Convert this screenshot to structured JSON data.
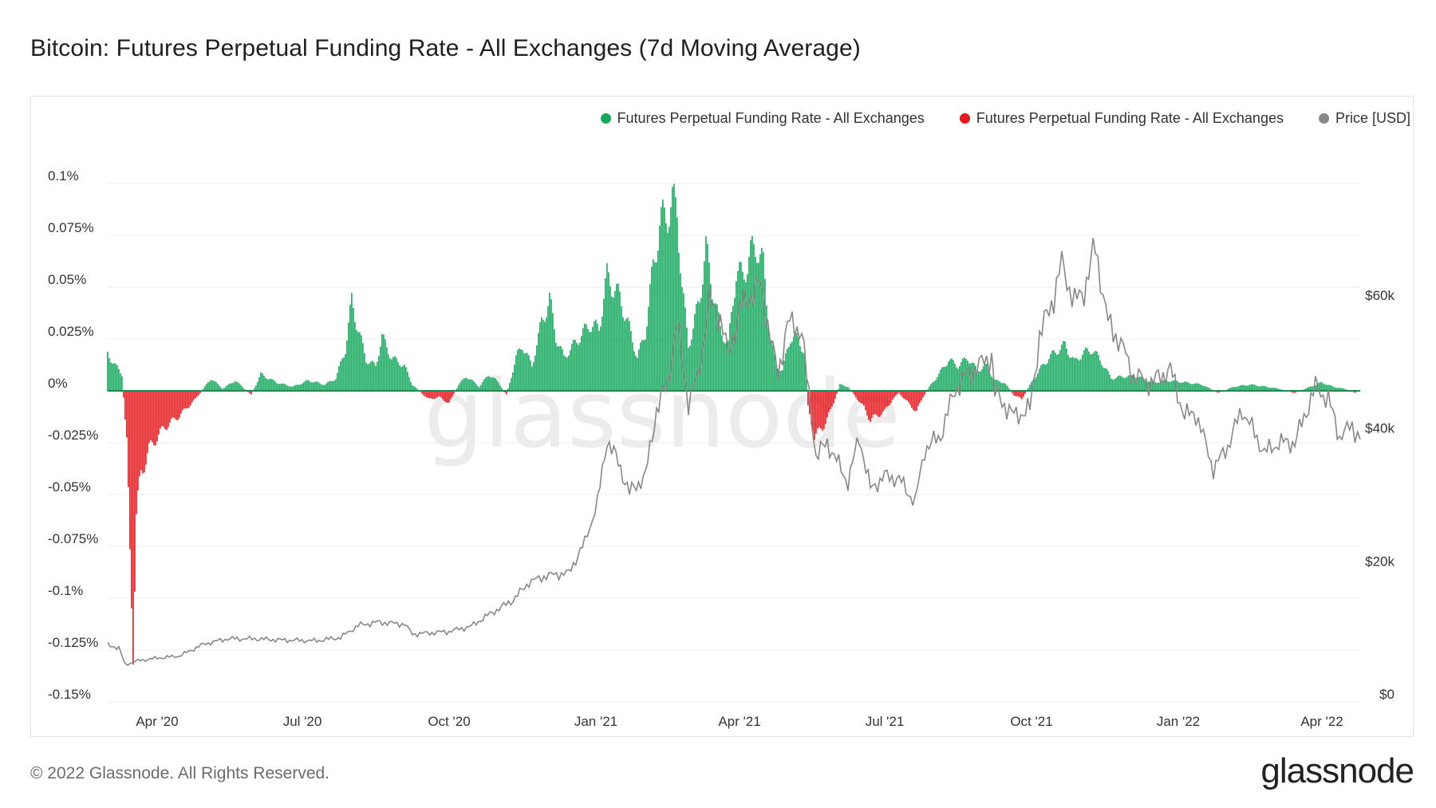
{
  "header": {
    "title": "Bitcoin: Futures Perpetual Funding Rate - All Exchanges (7d Moving Average)"
  },
  "footer": {
    "copyright": "© 2022 Glassnode. All Rights Reserved.",
    "logo": "glassnode"
  },
  "watermark": "glassnode",
  "colors": {
    "positive": "#16a95d",
    "negative": "#e5171c",
    "price": "#888888",
    "grid": "#eeeeee"
  },
  "chart_data": {
    "type": "bar",
    "title": "Bitcoin: Futures Perpetual Funding Rate - All Exchanges (7d Moving Average)",
    "legend": [
      {
        "name": "Futures Perpetual Funding Rate - All Exchanges",
        "color": "#16a95d"
      },
      {
        "name": "Futures Perpetual Funding Rate - All Exchanges",
        "color": "#e5171c"
      },
      {
        "name": "Price [USD]",
        "color": "#888888"
      }
    ],
    "legend_position": "top-right",
    "x_ticks": [
      "Apr '20",
      "Jul '20",
      "Oct '20",
      "Jan '21",
      "Apr '21",
      "Jul '21",
      "Oct '21",
      "Jan '22",
      "Apr '22"
    ],
    "x_range": [
      "2020-03-01",
      "2022-04-25"
    ],
    "y_left": {
      "ticks": [
        "0.1%",
        "0.075%",
        "0.05%",
        "0.025%",
        "0%",
        "-0.025%",
        "-0.05%",
        "-0.075%",
        "-0.1%",
        "-0.125%",
        "-0.15%"
      ],
      "range": [
        -0.15,
        0.1
      ],
      "unit": "%"
    },
    "y_right": {
      "ticks": [
        "$60k",
        "$40k",
        "$20k",
        "$0"
      ],
      "range": [
        0,
        78000
      ],
      "unit": "USD",
      "scale": "linear"
    },
    "grid": true,
    "series": [
      {
        "name": "Futures Perpetual Funding Rate - All Exchanges",
        "kind": "bar",
        "points": [
          [
            "2020-03-01",
            0.018
          ],
          [
            "2020-03-06",
            0.012
          ],
          [
            "2020-03-10",
            0.008
          ],
          [
            "2020-03-13",
            -0.025
          ],
          [
            "2020-03-15",
            -0.08
          ],
          [
            "2020-03-17",
            -0.118
          ],
          [
            "2020-03-19",
            -0.06
          ],
          [
            "2020-03-22",
            -0.04
          ],
          [
            "2020-03-27",
            -0.028
          ],
          [
            "2020-04-05",
            -0.018
          ],
          [
            "2020-04-15",
            -0.012
          ],
          [
            "2020-04-25",
            -0.004
          ],
          [
            "2020-05-01",
            0.002
          ],
          [
            "2020-05-05",
            0.006
          ],
          [
            "2020-05-12",
            0.001
          ],
          [
            "2020-05-20",
            0.005
          ],
          [
            "2020-05-30",
            -0.002
          ],
          [
            "2020-06-05",
            0.008
          ],
          [
            "2020-06-15",
            0.004
          ],
          [
            "2020-06-25",
            0.002
          ],
          [
            "2020-07-05",
            0.005
          ],
          [
            "2020-07-15",
            0.003
          ],
          [
            "2020-07-22",
            0.006
          ],
          [
            "2020-07-28",
            0.02
          ],
          [
            "2020-08-01",
            0.043
          ],
          [
            "2020-08-05",
            0.03
          ],
          [
            "2020-08-10",
            0.015
          ],
          [
            "2020-08-16",
            0.012
          ],
          [
            "2020-08-20",
            0.026
          ],
          [
            "2020-08-26",
            0.016
          ],
          [
            "2020-09-03",
            0.012
          ],
          [
            "2020-09-08",
            0.003
          ],
          [
            "2020-09-18",
            -0.004
          ],
          [
            "2020-09-25",
            -0.003
          ],
          [
            "2020-10-01",
            -0.006
          ],
          [
            "2020-10-07",
            0.003
          ],
          [
            "2020-10-12",
            0.007
          ],
          [
            "2020-10-20",
            0.002
          ],
          [
            "2020-10-26",
            0.008
          ],
          [
            "2020-11-01",
            0.004
          ],
          [
            "2020-11-06",
            -0.002
          ],
          [
            "2020-11-12",
            0.016
          ],
          [
            "2020-11-16",
            0.022
          ],
          [
            "2020-11-22",
            0.012
          ],
          [
            "2020-11-28",
            0.033
          ],
          [
            "2020-12-03",
            0.044
          ],
          [
            "2020-12-07",
            0.026
          ],
          [
            "2020-12-12",
            0.016
          ],
          [
            "2020-12-18",
            0.022
          ],
          [
            "2020-12-24",
            0.028
          ],
          [
            "2020-12-28",
            0.032
          ],
          [
            "2021-01-03",
            0.03
          ],
          [
            "2021-01-08",
            0.055
          ],
          [
            "2021-01-12",
            0.05
          ],
          [
            "2021-01-16",
            0.045
          ],
          [
            "2021-01-22",
            0.03
          ],
          [
            "2021-01-27",
            0.016
          ],
          [
            "2021-02-01",
            0.028
          ],
          [
            "2021-02-06",
            0.06
          ],
          [
            "2021-02-10",
            0.08
          ],
          [
            "2021-02-14",
            0.085
          ],
          [
            "2021-02-18",
            0.09
          ],
          [
            "2021-02-21",
            0.088
          ],
          [
            "2021-02-24",
            0.05
          ],
          [
            "2021-02-28",
            0.022
          ],
          [
            "2021-03-03",
            0.03
          ],
          [
            "2021-03-07",
            0.045
          ],
          [
            "2021-03-11",
            0.068
          ],
          [
            "2021-03-15",
            0.05
          ],
          [
            "2021-03-20",
            0.03
          ],
          [
            "2021-03-25",
            0.022
          ],
          [
            "2021-03-30",
            0.058
          ],
          [
            "2021-04-03",
            0.055
          ],
          [
            "2021-04-08",
            0.066
          ],
          [
            "2021-04-12",
            0.07
          ],
          [
            "2021-04-16",
            0.06
          ],
          [
            "2021-04-20",
            0.028
          ],
          [
            "2021-04-24",
            0.012
          ],
          [
            "2021-04-28",
            0.01
          ],
          [
            "2021-05-03",
            0.026
          ],
          [
            "2021-05-08",
            0.025
          ],
          [
            "2021-05-12",
            0.018
          ],
          [
            "2021-05-14",
            -0.008
          ],
          [
            "2021-05-18",
            -0.022
          ],
          [
            "2021-05-23",
            -0.018
          ],
          [
            "2021-05-28",
            -0.01
          ],
          [
            "2021-06-03",
            0.003
          ],
          [
            "2021-06-08",
            0.002
          ],
          [
            "2021-06-13",
            -0.003
          ],
          [
            "2021-06-18",
            -0.008
          ],
          [
            "2021-06-22",
            -0.014
          ],
          [
            "2021-06-26",
            -0.012
          ],
          [
            "2021-07-01",
            -0.01
          ],
          [
            "2021-07-06",
            -0.004
          ],
          [
            "2021-07-10",
            -0.001
          ],
          [
            "2021-07-16",
            -0.006
          ],
          [
            "2021-07-21",
            -0.01
          ],
          [
            "2021-07-25",
            -0.003
          ],
          [
            "2021-07-30",
            0.003
          ],
          [
            "2021-08-04",
            0.008
          ],
          [
            "2021-08-10",
            0.015
          ],
          [
            "2021-08-16",
            0.012
          ],
          [
            "2021-08-22",
            0.016
          ],
          [
            "2021-08-28",
            0.01
          ],
          [
            "2021-09-03",
            0.012
          ],
          [
            "2021-09-08",
            0.005
          ],
          [
            "2021-09-14",
            0.004
          ],
          [
            "2021-09-20",
            -0.002
          ],
          [
            "2021-09-25",
            -0.004
          ],
          [
            "2021-10-01",
            0.004
          ],
          [
            "2021-10-06",
            0.01
          ],
          [
            "2021-10-12",
            0.016
          ],
          [
            "2021-10-18",
            0.02
          ],
          [
            "2021-10-22",
            0.022
          ],
          [
            "2021-10-28",
            0.014
          ],
          [
            "2021-11-02",
            0.018
          ],
          [
            "2021-11-08",
            0.02
          ],
          [
            "2021-11-14",
            0.014
          ],
          [
            "2021-11-20",
            0.006
          ],
          [
            "2021-11-28",
            0.007
          ],
          [
            "2021-12-06",
            0.007
          ],
          [
            "2021-12-16",
            0.004
          ],
          [
            "2021-12-26",
            0.005
          ],
          [
            "2022-01-06",
            0.004
          ],
          [
            "2022-01-16",
            0.003
          ],
          [
            "2022-01-26",
            -0.001
          ],
          [
            "2022-02-05",
            0.002
          ],
          [
            "2022-02-15",
            0.003
          ],
          [
            "2022-02-25",
            0.002
          ],
          [
            "2022-03-05",
            0.001
          ],
          [
            "2022-03-15",
            -0.001
          ],
          [
            "2022-03-25",
            0.002
          ],
          [
            "2022-04-01",
            0.004
          ],
          [
            "2022-04-08",
            0.002
          ],
          [
            "2022-04-15",
            0.001
          ],
          [
            "2022-04-22",
            -0.001
          ]
        ]
      },
      {
        "name": "Price [USD]",
        "kind": "line",
        "axis": "right",
        "points": [
          [
            "2020-03-01",
            8600
          ],
          [
            "2020-03-08",
            8100
          ],
          [
            "2020-03-12",
            5600
          ],
          [
            "2020-03-20",
            6200
          ],
          [
            "2020-04-01",
            6600
          ],
          [
            "2020-04-15",
            6900
          ],
          [
            "2020-04-30",
            8700
          ],
          [
            "2020-05-15",
            9500
          ],
          [
            "2020-06-01",
            9500
          ],
          [
            "2020-06-20",
            9300
          ],
          [
            "2020-07-10",
            9200
          ],
          [
            "2020-07-25",
            9700
          ],
          [
            "2020-08-05",
            11500
          ],
          [
            "2020-08-17",
            12000
          ],
          [
            "2020-09-03",
            11700
          ],
          [
            "2020-09-08",
            10200
          ],
          [
            "2020-10-01",
            10600
          ],
          [
            "2020-10-15",
            11400
          ],
          [
            "2020-10-25",
            13000
          ],
          [
            "2020-11-10",
            15300
          ],
          [
            "2020-11-20",
            18000
          ],
          [
            "2020-12-01",
            19000
          ],
          [
            "2020-12-15",
            19400
          ],
          [
            "2020-12-25",
            24000
          ],
          [
            "2021-01-02",
            30000
          ],
          [
            "2021-01-08",
            39500
          ],
          [
            "2021-01-15",
            36000
          ],
          [
            "2021-01-22",
            31500
          ],
          [
            "2021-02-01",
            34000
          ],
          [
            "2021-02-08",
            44000
          ],
          [
            "2021-02-15",
            48000
          ],
          [
            "2021-02-21",
            57000
          ],
          [
            "2021-02-28",
            45000
          ],
          [
            "2021-03-06",
            48800
          ],
          [
            "2021-03-13",
            60000
          ],
          [
            "2021-03-20",
            58000
          ],
          [
            "2021-03-25",
            52000
          ],
          [
            "2021-04-01",
            59000
          ],
          [
            "2021-04-14",
            63000
          ],
          [
            "2021-04-25",
            49000
          ],
          [
            "2021-05-01",
            57000
          ],
          [
            "2021-05-10",
            56000
          ],
          [
            "2021-05-13",
            49000
          ],
          [
            "2021-05-19",
            37000
          ],
          [
            "2021-05-26",
            39000
          ],
          [
            "2021-06-08",
            33000
          ],
          [
            "2021-06-15",
            40000
          ],
          [
            "2021-06-22",
            32000
          ],
          [
            "2021-07-01",
            34000
          ],
          [
            "2021-07-10",
            33500
          ],
          [
            "2021-07-20",
            30000
          ],
          [
            "2021-07-26",
            38000
          ],
          [
            "2021-08-05",
            40000
          ],
          [
            "2021-08-14",
            47000
          ],
          [
            "2021-08-23",
            49500
          ],
          [
            "2021-09-06",
            52000
          ],
          [
            "2021-09-08",
            46500
          ],
          [
            "2021-09-20",
            43000
          ],
          [
            "2021-09-30",
            44000
          ],
          [
            "2021-10-06",
            55000
          ],
          [
            "2021-10-15",
            61000
          ],
          [
            "2021-10-20",
            66000
          ],
          [
            "2021-10-28",
            60000
          ],
          [
            "2021-11-03",
            62000
          ],
          [
            "2021-11-10",
            68500
          ],
          [
            "2021-11-18",
            57000
          ],
          [
            "2021-11-26",
            54000
          ],
          [
            "2021-12-04",
            49000
          ],
          [
            "2021-12-15",
            48000
          ],
          [
            "2021-12-27",
            50000
          ],
          [
            "2022-01-05",
            43000
          ],
          [
            "2022-01-12",
            43500
          ],
          [
            "2022-01-23",
            35000
          ],
          [
            "2022-02-01",
            38500
          ],
          [
            "2022-02-10",
            44000
          ],
          [
            "2022-02-24",
            37500
          ],
          [
            "2022-03-05",
            39000
          ],
          [
            "2022-03-15",
            39000
          ],
          [
            "2022-03-28",
            47500
          ],
          [
            "2022-04-05",
            45500
          ],
          [
            "2022-04-12",
            40000
          ],
          [
            "2022-04-20",
            41500
          ],
          [
            "2022-04-25",
            39500
          ]
        ]
      }
    ]
  }
}
